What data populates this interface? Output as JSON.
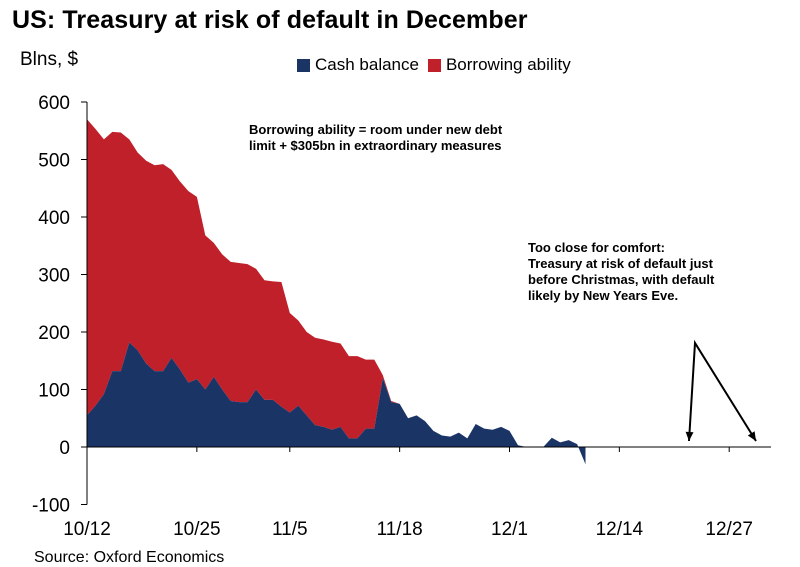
{
  "title": "US: Treasury at risk of default in December",
  "source": "Source: Oxford Economics",
  "chart_data": {
    "type": "area",
    "ylabel": "Blns, $",
    "ylim": [
      -100,
      600
    ],
    "yticks": [
      600,
      500,
      400,
      300,
      200,
      100,
      0,
      -100
    ],
    "xlim": [
      "10/12",
      "12/31"
    ],
    "xticks": [
      "10/12",
      "10/25",
      "11/5",
      "11/18",
      "12/1",
      "12/14",
      "12/27"
    ],
    "grid": false,
    "legend_position": "top",
    "colors": {
      "cash": "#1a3466",
      "borrowing": "#c0202a"
    },
    "series": [
      {
        "name": "Cash balance",
        "points": [
          [
            "10/12",
            55
          ],
          [
            "10/13",
            72
          ],
          [
            "10/14",
            92
          ],
          [
            "10/15",
            132
          ],
          [
            "10/16",
            132
          ],
          [
            "10/17",
            182
          ],
          [
            "10/18",
            168
          ],
          [
            "10/19",
            145
          ],
          [
            "10/20",
            132
          ],
          [
            "10/21",
            132
          ],
          [
            "10/22",
            155
          ],
          [
            "10/23",
            135
          ],
          [
            "10/24",
            112
          ],
          [
            "10/25",
            118
          ],
          [
            "10/26",
            100
          ],
          [
            "10/27",
            122
          ],
          [
            "10/28",
            100
          ],
          [
            "10/29",
            80
          ],
          [
            "10/30",
            78
          ],
          [
            "10/31",
            78
          ],
          [
            "11/1",
            100
          ],
          [
            "11/2",
            82
          ],
          [
            "11/3",
            82
          ],
          [
            "11/4",
            70
          ],
          [
            "11/5",
            60
          ],
          [
            "11/6",
            72
          ],
          [
            "11/7",
            55
          ],
          [
            "11/8",
            38
          ],
          [
            "11/9",
            35
          ],
          [
            "11/10",
            30
          ],
          [
            "11/11",
            35
          ],
          [
            "11/12",
            15
          ],
          [
            "11/13",
            15
          ],
          [
            "11/14",
            32
          ],
          [
            "11/15",
            32
          ],
          [
            "11/16",
            120
          ],
          [
            "11/17",
            78
          ],
          [
            "11/18",
            75
          ],
          [
            "11/19",
            50
          ],
          [
            "11/20",
            55
          ],
          [
            "11/21",
            45
          ],
          [
            "11/22",
            28
          ],
          [
            "11/23",
            20
          ],
          [
            "11/24",
            18
          ],
          [
            "11/25",
            25
          ],
          [
            "11/26",
            15
          ],
          [
            "11/27",
            40
          ],
          [
            "11/28",
            32
          ],
          [
            "11/29",
            30
          ],
          [
            "11/30",
            35
          ],
          [
            "12/1",
            28
          ],
          [
            "12/2",
            3
          ],
          [
            "12/3",
            0
          ],
          [
            "12/4",
            0
          ],
          [
            "12/5",
            0
          ],
          [
            "12/6",
            16
          ],
          [
            "12/7",
            8
          ],
          [
            "12/8",
            12
          ],
          [
            "12/9",
            5
          ],
          [
            "12/10",
            -30
          ]
        ]
      },
      {
        "name": "Borrowing ability",
        "points": [
          [
            "10/12",
            570
          ],
          [
            "10/13",
            553
          ],
          [
            "10/14",
            535
          ],
          [
            "10/15",
            548
          ],
          [
            "10/16",
            547
          ],
          [
            "10/17",
            535
          ],
          [
            "10/18",
            512
          ],
          [
            "10/19",
            498
          ],
          [
            "10/20",
            490
          ],
          [
            "10/21",
            492
          ],
          [
            "10/22",
            482
          ],
          [
            "10/23",
            462
          ],
          [
            "10/24",
            445
          ],
          [
            "10/25",
            435
          ],
          [
            "10/26",
            368
          ],
          [
            "10/27",
            355
          ],
          [
            "10/28",
            335
          ],
          [
            "10/29",
            322
          ],
          [
            "10/30",
            320
          ],
          [
            "10/31",
            318
          ],
          [
            "11/1",
            310
          ],
          [
            "11/2",
            290
          ],
          [
            "11/3",
            288
          ],
          [
            "11/4",
            287
          ],
          [
            "11/5",
            233
          ],
          [
            "11/6",
            220
          ],
          [
            "11/7",
            200
          ],
          [
            "11/8",
            190
          ],
          [
            "11/9",
            187
          ],
          [
            "11/10",
            183
          ],
          [
            "11/11",
            180
          ],
          [
            "11/12",
            158
          ],
          [
            "11/13",
            158
          ],
          [
            "11/14",
            152
          ],
          [
            "11/15",
            152
          ],
          [
            "11/16",
            125
          ],
          [
            "11/17",
            80
          ],
          [
            "11/18",
            0
          ]
        ]
      }
    ],
    "annotations": [
      {
        "lines": [
          "Borrowing ability = room under new debt",
          "limit + $305bn in extraordinary measures"
        ]
      },
      {
        "lines": [
          "Too close for comfort:",
          "Treasury at risk of default just",
          "before Christmas, with default",
          "likely by New Years Eve."
        ]
      }
    ]
  }
}
